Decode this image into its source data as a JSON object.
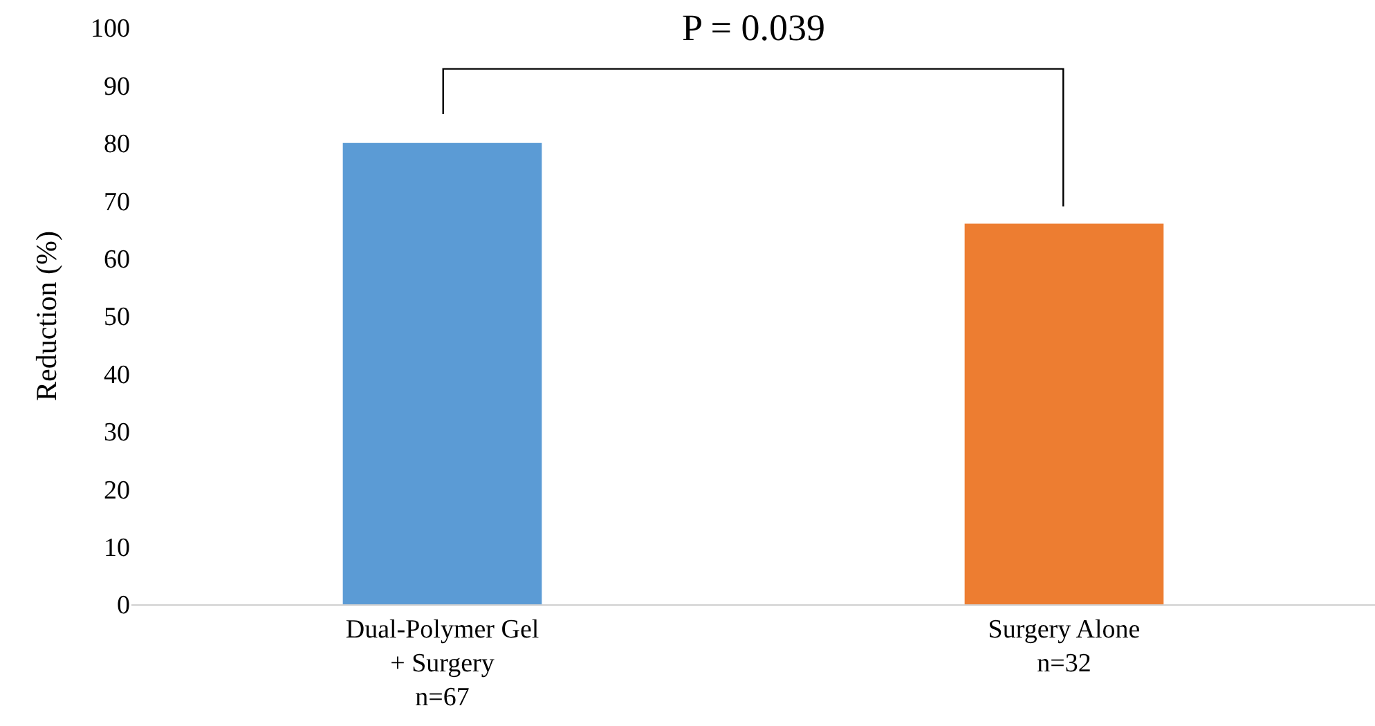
{
  "chart_data": {
    "type": "bar",
    "ylabel": "Reduction (%)",
    "categories": [
      "Dual-Polymer Gel\n+ Surgery\nn=67",
      "Surgery Alone\nn=32"
    ],
    "values": [
      80,
      66
    ],
    "colors": [
      "#5b9bd5",
      "#ed7d31"
    ],
    "ylim": [
      0,
      100
    ],
    "yticks": [
      0,
      10,
      20,
      30,
      40,
      50,
      60,
      70,
      80,
      90,
      100
    ],
    "grid": false,
    "annotations": [
      "P = 0.039"
    ]
  }
}
